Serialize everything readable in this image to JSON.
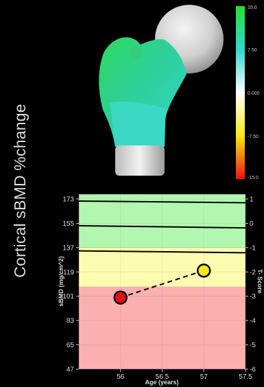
{
  "side_title": "Cortical sBMD %change",
  "colorbar": {
    "ticks": [
      "15.0",
      "7.50",
      "0.000",
      "-7.50",
      "-15.0"
    ],
    "colors": [
      "#28e030",
      "#30d7d0",
      "#ffffff",
      "#f7ea10",
      "#f01010"
    ]
  },
  "chart_data": {
    "type": "line",
    "xlabel": "Age (years)",
    "ylabel": "sBMD (mg/cm^2)",
    "y2label": "T- Score",
    "xlim": [
      55.5,
      57.5
    ],
    "ylim": [
      47,
      173
    ],
    "x_ticks": [
      "56",
      "56.5",
      "57",
      "57.5"
    ],
    "x_tick_values": [
      56,
      56.5,
      57,
      57.5
    ],
    "y_ticks": [
      "173",
      "155",
      "137",
      "119",
      "101",
      "83",
      "65",
      "47"
    ],
    "y_tick_values": [
      173,
      155,
      137,
      119,
      101,
      83,
      65,
      47
    ],
    "y2_ticks": [
      "1",
      "0",
      "-1",
      "-2",
      "-3",
      "-4",
      "-5",
      "-6"
    ],
    "bands": [
      {
        "from": 137,
        "to": 173,
        "color": "#b2f7b0"
      },
      {
        "from": 108,
        "to": 137,
        "color": "#fcfcb0"
      },
      {
        "from": 47,
        "to": 108,
        "color": "#fbb0b0"
      }
    ],
    "reference_lines": [
      {
        "x": [
          55.5,
          57.5
        ],
        "y": [
          171.5,
          170.2
        ]
      },
      {
        "x": [
          55.5,
          57.5
        ],
        "y": [
          153.2,
          151.6
        ]
      },
      {
        "x": [
          55.5,
          57.5
        ],
        "y": [
          134.6,
          133.2
        ]
      }
    ],
    "series": [
      {
        "x": [
          56,
          57
        ],
        "y": [
          100,
          120
        ],
        "colors": [
          "#e81010",
          "#f5e81a"
        ]
      }
    ],
    "grid": true
  }
}
